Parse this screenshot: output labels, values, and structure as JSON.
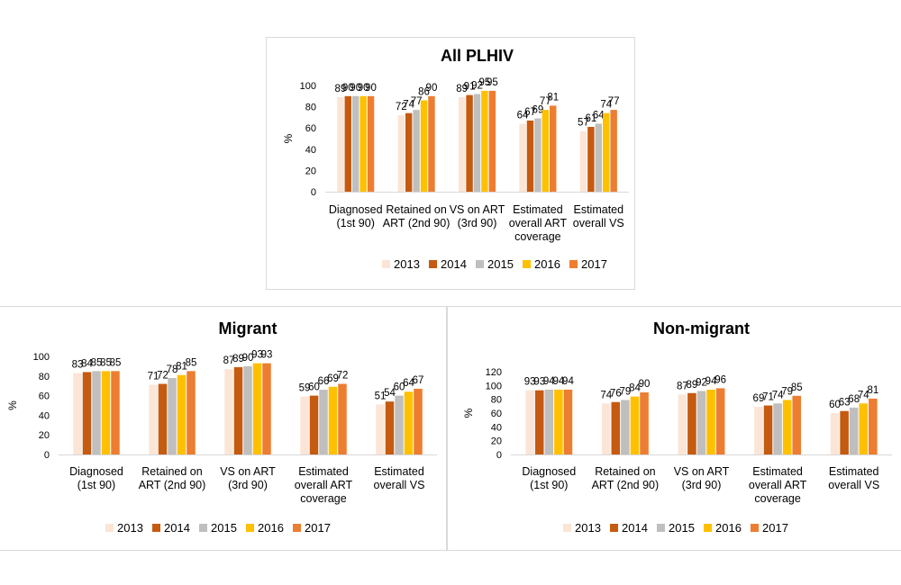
{
  "series_names": [
    "2013",
    "2014",
    "2015",
    "2016",
    "2017"
  ],
  "series_colors": [
    "#FBE5D6",
    "#C55A11",
    "#BFBFBF",
    "#FFC000",
    "#ED7D31"
  ],
  "chart_data": [
    {
      "id": "all",
      "type": "bar",
      "title": "All PLHIV",
      "ylabel": "%",
      "ylim": [
        0,
        100
      ],
      "yticks": [
        0,
        20,
        40,
        60,
        80,
        100
      ],
      "categories": [
        [
          "Diagnosed",
          "(1st 90)"
        ],
        [
          "Retained on",
          "ART (2nd 90)"
        ],
        [
          "VS on ART",
          "(3rd 90)"
        ],
        [
          "Estimated",
          "overall ART",
          "coverage"
        ],
        [
          "Estimated",
          "overall VS"
        ]
      ],
      "series": [
        {
          "name": "2013",
          "values": [
            89,
            72,
            89,
            64,
            57
          ]
        },
        {
          "name": "2014",
          "values": [
            90,
            74,
            91,
            67,
            61
          ]
        },
        {
          "name": "2015",
          "values": [
            90,
            77,
            92,
            69,
            64
          ]
        },
        {
          "name": "2016",
          "values": [
            90,
            86,
            95,
            77,
            74
          ]
        },
        {
          "name": "2017",
          "values": [
            90,
            90,
            95,
            81,
            77
          ]
        }
      ]
    },
    {
      "id": "mig",
      "type": "bar",
      "title": "Migrant",
      "ylabel": "%",
      "ylim": [
        0,
        100
      ],
      "yticks": [
        0,
        20,
        40,
        60,
        80,
        100
      ],
      "categories": [
        [
          "Diagnosed",
          "(1st 90)"
        ],
        [
          "Retained on",
          "ART (2nd 90)"
        ],
        [
          "VS on ART",
          "(3rd 90)"
        ],
        [
          "Estimated",
          "overall ART",
          "coverage"
        ],
        [
          "Estimated",
          "overall VS"
        ]
      ],
      "series": [
        {
          "name": "2013",
          "values": [
            83,
            71,
            87,
            59,
            51
          ]
        },
        {
          "name": "2014",
          "values": [
            84,
            72,
            89,
            60,
            54
          ]
        },
        {
          "name": "2015",
          "values": [
            85,
            78,
            90,
            66,
            60
          ]
        },
        {
          "name": "2016",
          "values": [
            85,
            81,
            93,
            69,
            64
          ]
        },
        {
          "name": "2017",
          "values": [
            85,
            85,
            93,
            72,
            67
          ]
        }
      ]
    },
    {
      "id": "non",
      "type": "bar",
      "title": "Non-migrant",
      "ylabel": "%",
      "ylim": [
        0,
        120
      ],
      "yticks": [
        0,
        20,
        40,
        60,
        80,
        100,
        120
      ],
      "categories": [
        [
          "Diagnosed",
          "(1st 90)"
        ],
        [
          "Retained on",
          "ART (2nd 90)"
        ],
        [
          "VS on ART",
          "(3rd 90)"
        ],
        [
          "Estimated",
          "overall ART",
          "coverage"
        ],
        [
          "Estimated",
          "overall VS"
        ]
      ],
      "series": [
        {
          "name": "2013",
          "values": [
            93,
            74,
            87,
            69,
            60
          ]
        },
        {
          "name": "2014",
          "values": [
            93,
            76,
            89,
            71,
            63
          ]
        },
        {
          "name": "2015",
          "values": [
            94,
            79,
            92,
            74,
            68
          ]
        },
        {
          "name": "2016",
          "values": [
            94,
            84,
            94,
            79,
            74
          ]
        },
        {
          "name": "2017",
          "values": [
            94,
            90,
            96,
            85,
            81
          ]
        }
      ]
    }
  ]
}
